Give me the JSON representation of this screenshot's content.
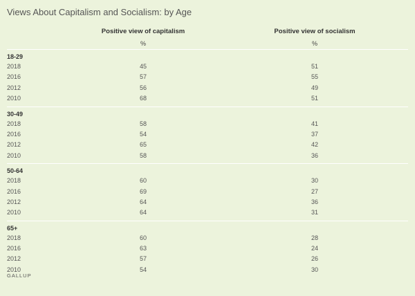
{
  "chart_data": {
    "type": "table",
    "title": "Views About Capitalism and Socialism: by Age",
    "columns": [
      {
        "label": "Positive view of capitalism",
        "unit": "%"
      },
      {
        "label": "Positive view of socialism",
        "unit": "%"
      }
    ],
    "groups": [
      {
        "label": "18-29",
        "rows": [
          {
            "year": "2018",
            "capitalism": 45,
            "socialism": 51
          },
          {
            "year": "2016",
            "capitalism": 57,
            "socialism": 55
          },
          {
            "year": "2012",
            "capitalism": 56,
            "socialism": 49
          },
          {
            "year": "2010",
            "capitalism": 68,
            "socialism": 51
          }
        ]
      },
      {
        "label": "30-49",
        "rows": [
          {
            "year": "2018",
            "capitalism": 58,
            "socialism": 41
          },
          {
            "year": "2016",
            "capitalism": 54,
            "socialism": 37
          },
          {
            "year": "2012",
            "capitalism": 65,
            "socialism": 42
          },
          {
            "year": "2010",
            "capitalism": 58,
            "socialism": 36
          }
        ]
      },
      {
        "label": "50-64",
        "rows": [
          {
            "year": "2018",
            "capitalism": 60,
            "socialism": 30
          },
          {
            "year": "2016",
            "capitalism": 69,
            "socialism": 27
          },
          {
            "year": "2012",
            "capitalism": 64,
            "socialism": 36
          },
          {
            "year": "2010",
            "capitalism": 64,
            "socialism": 31
          }
        ]
      },
      {
        "label": "65+",
        "rows": [
          {
            "year": "2018",
            "capitalism": 60,
            "socialism": 28
          },
          {
            "year": "2016",
            "capitalism": 63,
            "socialism": 24
          },
          {
            "year": "2012",
            "capitalism": 57,
            "socialism": 26
          },
          {
            "year": "2010",
            "capitalism": 54,
            "socialism": 30
          }
        ]
      }
    ]
  },
  "source": "GALLUP"
}
